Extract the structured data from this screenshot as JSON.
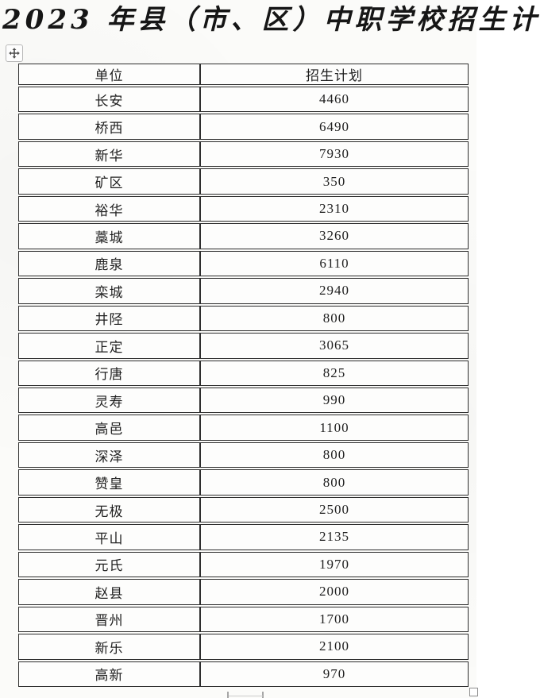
{
  "page": {
    "title": "2023 年县（市、区）中职学校招生计"
  },
  "icons": {
    "move_handle": "move-icon",
    "resize_handle": "resize-handle-icon"
  },
  "table": {
    "headers": [
      "单位",
      "招生计划"
    ],
    "rows": [
      [
        "长安",
        "4460"
      ],
      [
        "桥西",
        "6490"
      ],
      [
        "新华",
        "7930"
      ],
      [
        "矿区",
        "350"
      ],
      [
        "裕华",
        "2310"
      ],
      [
        "藁城",
        "3260"
      ],
      [
        "鹿泉",
        "6110"
      ],
      [
        "栾城",
        "2940"
      ],
      [
        "井陉",
        "800"
      ],
      [
        "正定",
        "3065"
      ],
      [
        "行唐",
        "825"
      ],
      [
        "灵寿",
        "990"
      ],
      [
        "高邑",
        "1100"
      ],
      [
        "深泽",
        "800"
      ],
      [
        "赞皇",
        "800"
      ],
      [
        "无极",
        "2500"
      ],
      [
        "平山",
        "2135"
      ],
      [
        "元氏",
        "1970"
      ],
      [
        "赵县",
        "2000"
      ],
      [
        "晋州",
        "1700"
      ],
      [
        "新乐",
        "2100"
      ],
      [
        "高新",
        "970"
      ]
    ]
  },
  "colors": {
    "background": "#fbfbf9",
    "table_border": "#2e2e2e",
    "cell_text": "#1f1f1f",
    "title_text": "#161616"
  }
}
